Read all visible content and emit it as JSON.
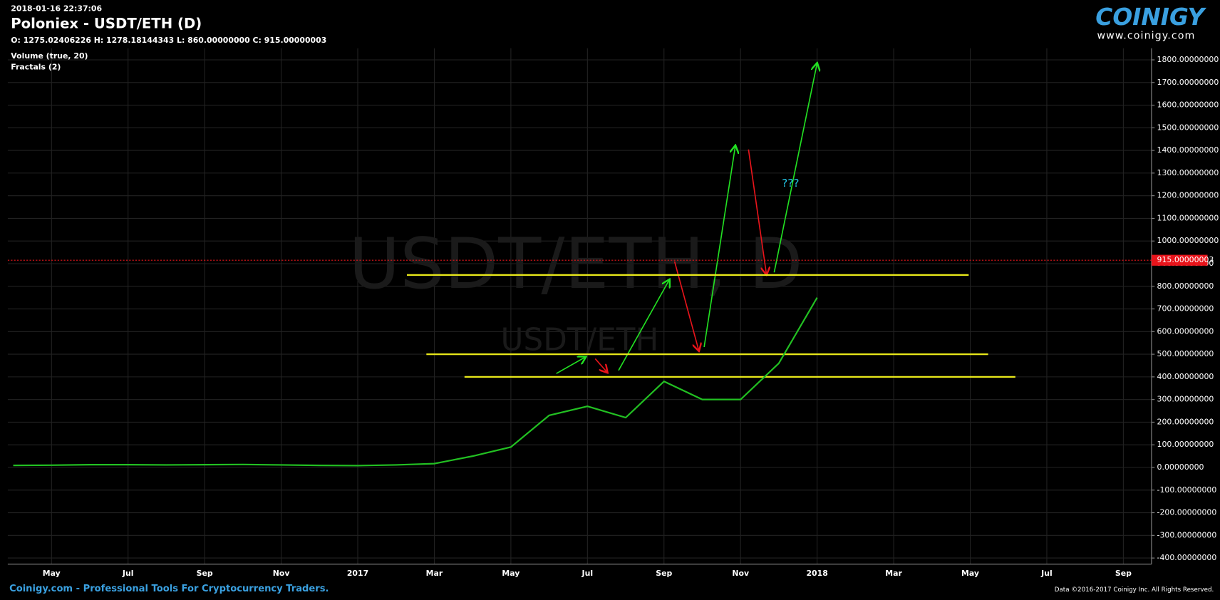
{
  "header": {
    "timestamp": "2018-01-16 22:37:06",
    "title": "Poloniex - USDT/ETH (D)",
    "ohlc": "O: 1275.02406226 H: 1278.18144343 L: 860.00000000 C: 915.00000003",
    "indicators": [
      "Volume (true, 20)",
      "Fractals (2)"
    ]
  },
  "logo": {
    "name": "COINIGY",
    "url": "www.coinigy.com"
  },
  "footer": {
    "left": "Coinigy.com - Professional Tools For Cryptocurrency Traders.",
    "right": "Data ©2016-2017 Coinigy Inc. All Rights Reserved."
  },
  "chart_data": {
    "type": "line",
    "watermark": [
      "USDT/ETH, D",
      "USDT/ETH"
    ],
    "annotation": "???",
    "categories": [
      null,
      "May",
      null,
      "Jul",
      null,
      "Sep",
      null,
      "Nov",
      null,
      "2017",
      null,
      "Mar",
      null,
      "May",
      null,
      "Jul",
      null,
      "Sep",
      null,
      "Nov",
      null,
      "2018",
      null,
      "Mar",
      null,
      "May",
      null,
      "Jul",
      null,
      "Sep"
    ],
    "series": [
      {
        "name": "USDT/ETH",
        "color": "#22c022",
        "values": [
          9,
          10,
          12,
          12,
          11,
          12,
          13,
          11,
          9,
          8,
          11,
          17,
          50,
          90,
          230,
          270,
          220,
          380,
          300,
          300,
          460,
          750,
          null,
          null,
          null,
          null,
          null,
          null,
          null,
          null
        ]
      }
    ],
    "current_price": 915.00000003,
    "current_color": "#e8141b",
    "levels": [
      850,
      500,
      400
    ],
    "level_color": "#e8e81a",
    "ylim": [
      -427,
      1851
    ],
    "yticks": [
      {
        "value": -400,
        "label": "-400.00000000"
      },
      {
        "value": -300,
        "label": "-300.00000000"
      },
      {
        "value": -200,
        "label": "-200.00000000"
      },
      {
        "value": -100,
        "label": "-100.00000000"
      },
      {
        "value": 0,
        "label": "0.00000000"
      },
      {
        "value": 100,
        "label": "100.00000000"
      },
      {
        "value": 200,
        "label": "200.00000000"
      },
      {
        "value": 300,
        "label": "300.00000000"
      },
      {
        "value": 400,
        "label": "400.00000000"
      },
      {
        "value": 500,
        "label": "500.00000000"
      },
      {
        "value": 600,
        "label": "600.00000000"
      },
      {
        "value": 700,
        "label": "700.00000000"
      },
      {
        "value": 800,
        "label": "800.00000000"
      },
      {
        "value": 900,
        "label": "900.00000000"
      },
      {
        "value": 1000,
        "label": "1000.00000000"
      },
      {
        "value": 1100,
        "label": "1100.00000000"
      },
      {
        "value": 1200,
        "label": "1200.00000000"
      },
      {
        "value": 1300,
        "label": "1300.00000000"
      },
      {
        "value": 1400,
        "label": "1400.00000000"
      },
      {
        "value": 1500,
        "label": "1500.00000000"
      },
      {
        "value": 1600,
        "label": "1600.00000000"
      },
      {
        "value": 1700,
        "label": "1700.00000000"
      },
      {
        "value": 1800,
        "label": "1800.00000000"
      }
    ],
    "grid": true
  }
}
